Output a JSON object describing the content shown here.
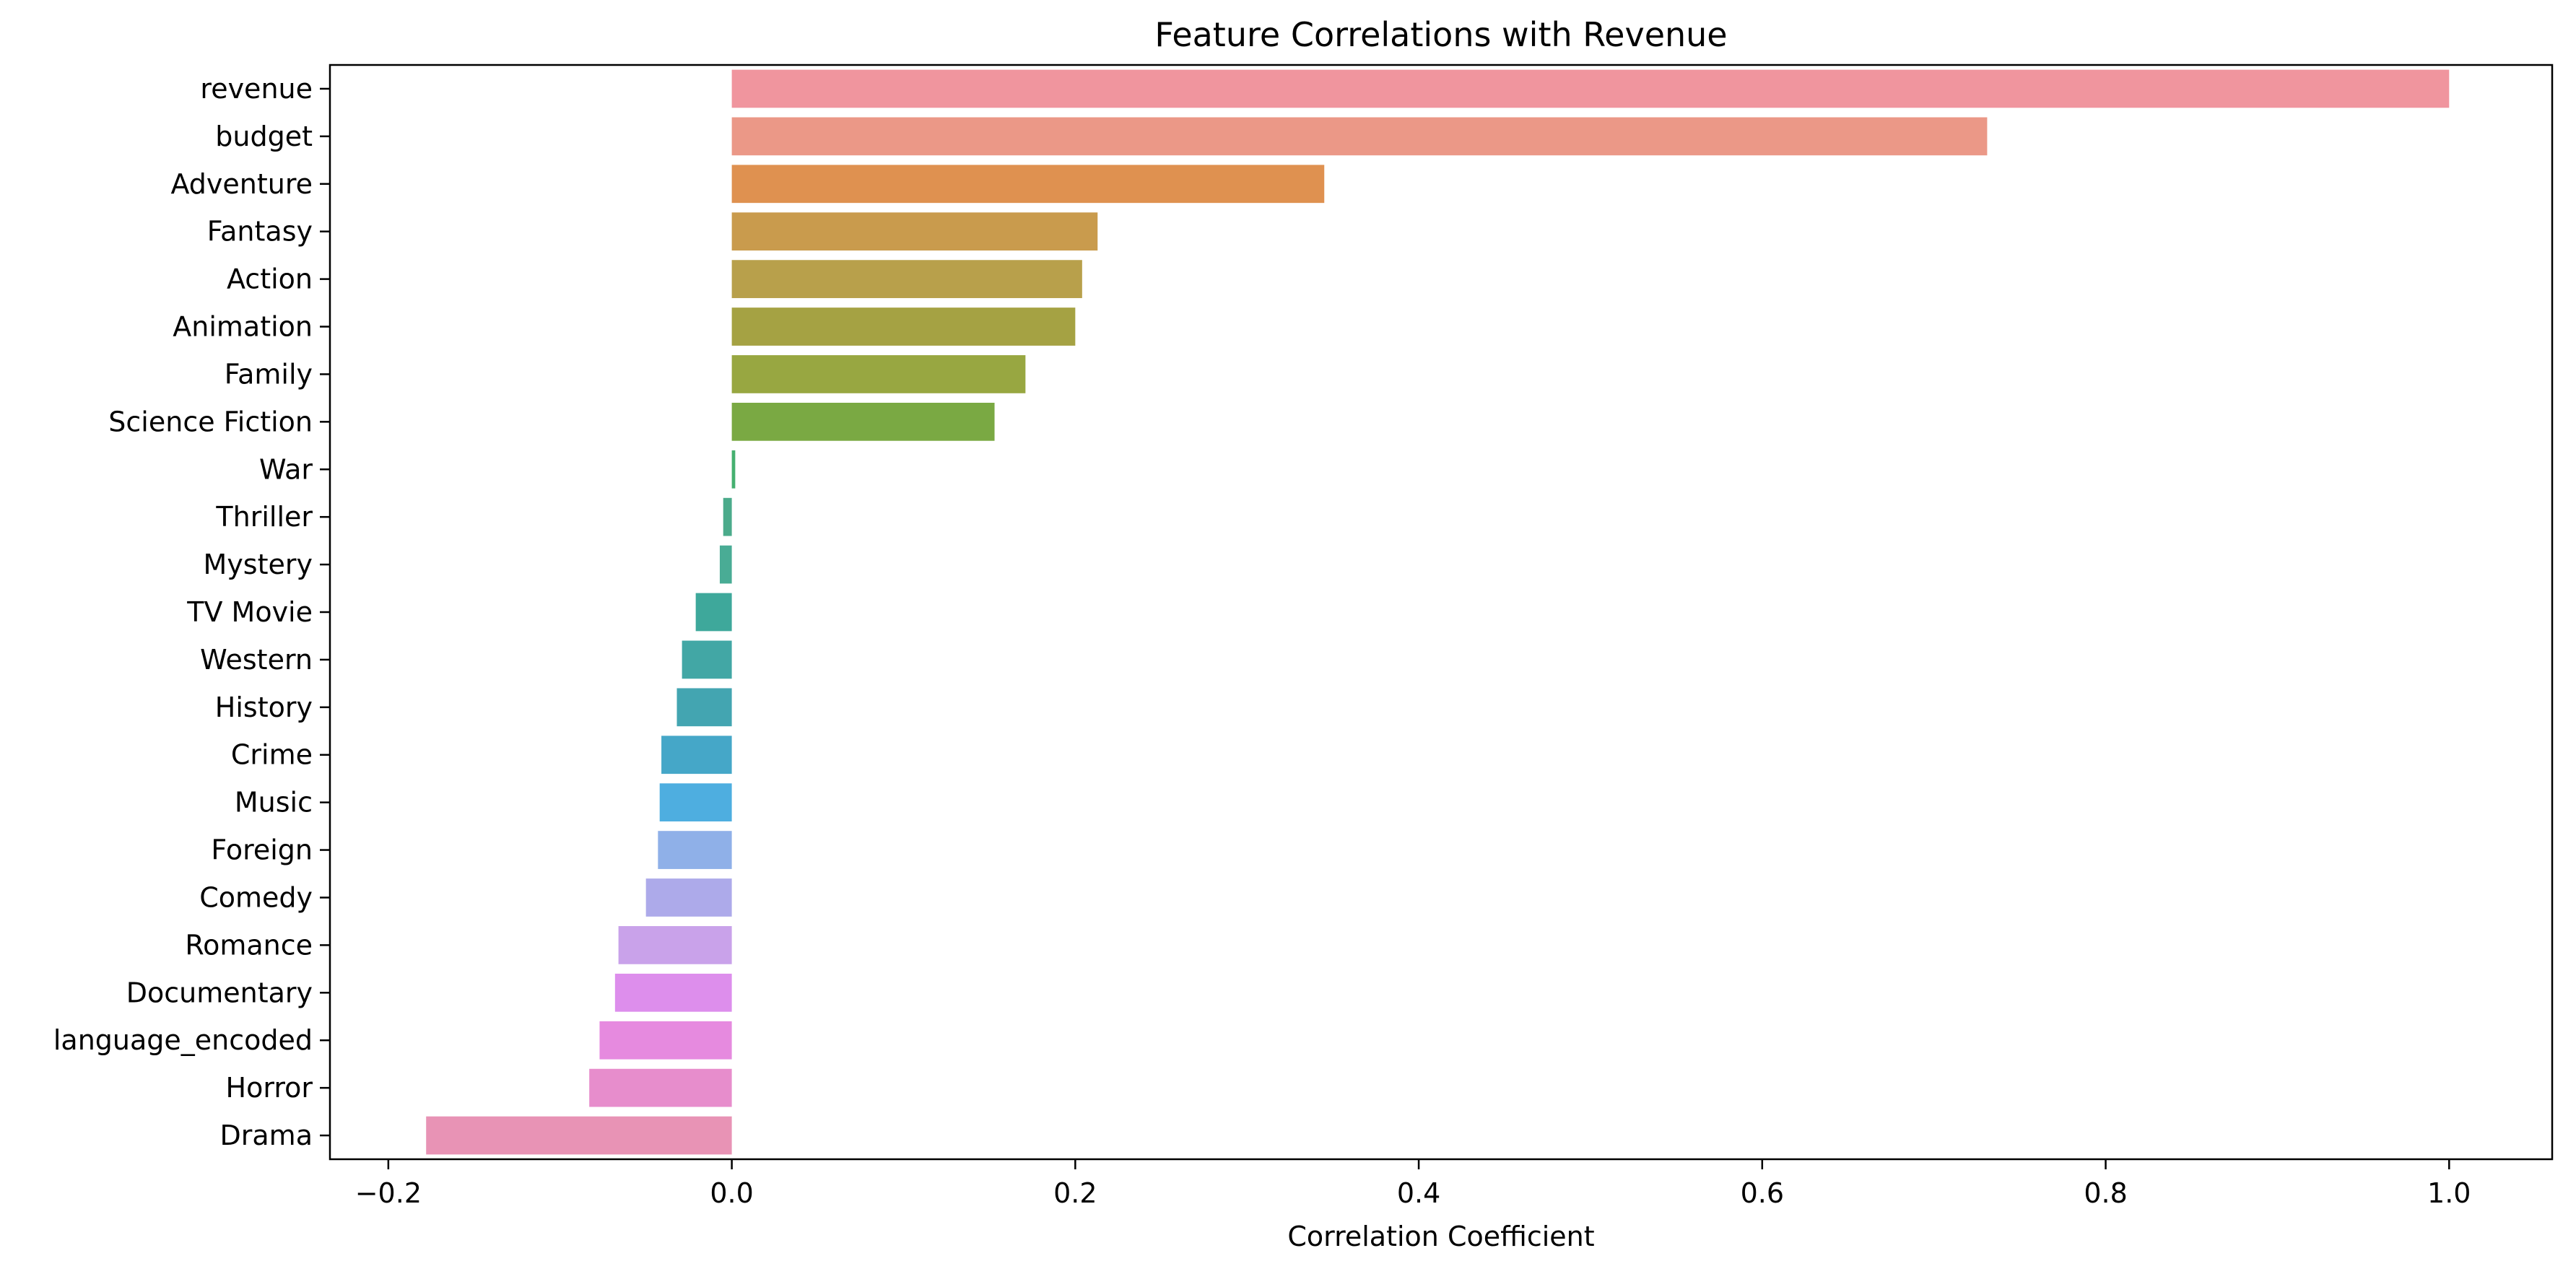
{
  "chart_data": {
    "type": "bar",
    "orientation": "horizontal",
    "title": "Feature Correlations with Revenue",
    "xlabel": "Correlation Coefficient",
    "ylabel": "",
    "xlim": [
      -0.234,
      1.06
    ],
    "xticks": [
      -0.2,
      0.0,
      0.2,
      0.4,
      0.6,
      0.8,
      1.0
    ],
    "xtick_labels": [
      "−0.2",
      "0.0",
      "0.2",
      "0.4",
      "0.6",
      "0.8",
      "1.0"
    ],
    "grid": false,
    "legend": "none",
    "categories": [
      "revenue",
      "budget",
      "Adventure",
      "Fantasy",
      "Action",
      "Animation",
      "Family",
      "Science Fiction",
      "War",
      "Thriller",
      "Mystery",
      "TV Movie",
      "Western",
      "History",
      "Crime",
      "Music",
      "Foreign",
      "Comedy",
      "Romance",
      "Documentary",
      "language_encoded",
      "Horror",
      "Drama"
    ],
    "values": [
      1.0,
      0.731,
      0.345,
      0.213,
      0.204,
      0.2,
      0.171,
      0.153,
      0.002,
      -0.005,
      -0.007,
      -0.021,
      -0.029,
      -0.032,
      -0.041,
      -0.042,
      -0.043,
      -0.05,
      -0.066,
      -0.068,
      -0.077,
      -0.083,
      -0.178
    ],
    "colors": [
      "#f0959e",
      "#eb9887",
      "#df9150",
      "#c99b4d",
      "#b8a04b",
      "#a5a243",
      "#98a741",
      "#7aa943",
      "#45b070",
      "#4bab8b",
      "#49ac95",
      "#3ea89b",
      "#42a7a5",
      "#43a5b1",
      "#45a7c8",
      "#4eaee0",
      "#8fb0e8",
      "#adaaea",
      "#c9a2ea",
      "#dd8eec",
      "#e68adf",
      "#e78dcc",
      "#e893b5"
    ]
  }
}
